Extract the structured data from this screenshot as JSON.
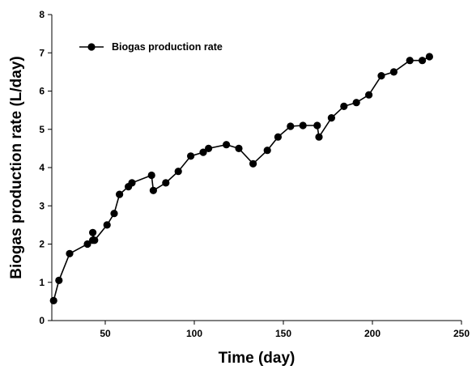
{
  "chart_data": {
    "type": "line",
    "xlabel": "Time (day)",
    "ylabel": "Biogas production rate (L/day)",
    "xlim": [
      20,
      250
    ],
    "ylim": [
      0,
      8
    ],
    "x_ticks": [
      50,
      100,
      150,
      200,
      250
    ],
    "y_ticks": [
      0,
      1,
      2,
      3,
      4,
      5,
      6,
      7,
      8
    ],
    "grid": false,
    "legend_position": "top-left",
    "series": [
      {
        "name": "Biogas production rate",
        "color": "#000000",
        "marker": "circle",
        "x": [
          21,
          24,
          30,
          40,
          43,
          43,
          44,
          51,
          55,
          58,
          63,
          65,
          76,
          77,
          84,
          91,
          98,
          105,
          108,
          118,
          125,
          133,
          141,
          147,
          154,
          161,
          169,
          170,
          177,
          184,
          191,
          198,
          205,
          212,
          221,
          228,
          232
        ],
        "y": [
          0.52,
          1.05,
          1.75,
          2.0,
          2.1,
          2.3,
          2.1,
          2.5,
          2.8,
          3.3,
          3.5,
          3.6,
          3.8,
          3.4,
          3.6,
          3.9,
          4.3,
          4.4,
          4.5,
          4.6,
          4.5,
          4.1,
          4.45,
          4.8,
          5.08,
          5.1,
          5.1,
          4.8,
          5.3,
          5.6,
          5.7,
          5.9,
          6.4,
          6.5,
          6.8,
          6.8,
          6.9
        ]
      }
    ]
  }
}
